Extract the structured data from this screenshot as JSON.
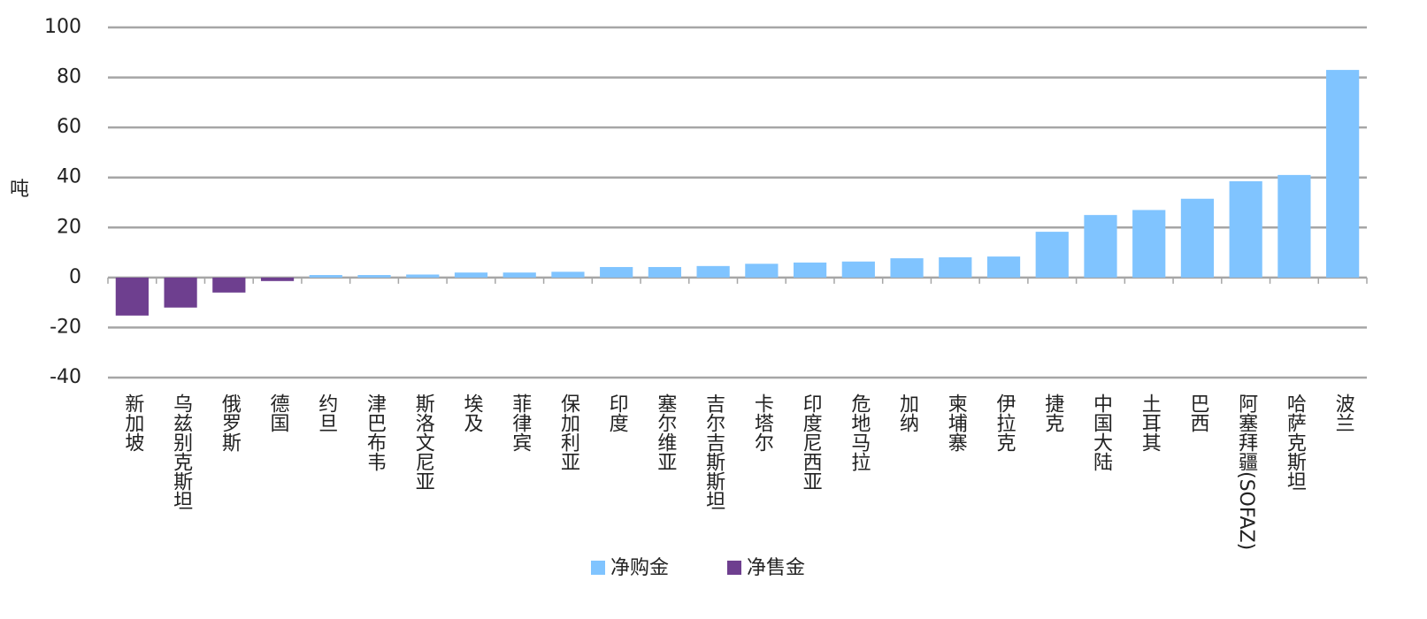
{
  "chart_data": {
    "type": "bar",
    "categories": [
      "新加坡",
      "乌兹别克斯坦",
      "俄罗斯",
      "德国",
      "约旦",
      "津巴布韦",
      "斯洛文尼亚",
      "埃及",
      "菲律宾",
      "保加利亚",
      "印度",
      "塞尔维亚",
      "吉尔吉斯斯坦",
      "卡塔尔",
      "印度尼西亚",
      "危地马拉",
      "加纳",
      "柬埔寨",
      "伊拉克",
      "捷克",
      "中国大陆",
      "土耳其",
      "巴西",
      "阿塞拜疆(SOFAZ)",
      "哈萨克斯坦",
      "波兰"
    ],
    "series": [
      {
        "name": "净购金",
        "color": "#80c4ff",
        "values": [
          null,
          null,
          null,
          null,
          1,
          1,
          1.2,
          2,
          2,
          2.3,
          4.2,
          4.2,
          4.6,
          5.5,
          6,
          6.4,
          7.7,
          8.1,
          8.4,
          18.3,
          25,
          27,
          31.5,
          38.5,
          41,
          83
        ]
      },
      {
        "name": "净售金",
        "color": "#6e3f8f",
        "values": [
          -15.2,
          -12,
          -6,
          -1.4,
          null,
          null,
          null,
          null,
          null,
          null,
          null,
          null,
          null,
          null,
          null,
          null,
          null,
          null,
          null,
          null,
          null,
          null,
          null,
          null,
          null,
          null
        ]
      }
    ],
    "y_label": "吨",
    "ylim": [
      -40,
      100
    ],
    "yticks": [
      -40,
      -20,
      0,
      20,
      40,
      60,
      80,
      100
    ],
    "grid": true
  }
}
